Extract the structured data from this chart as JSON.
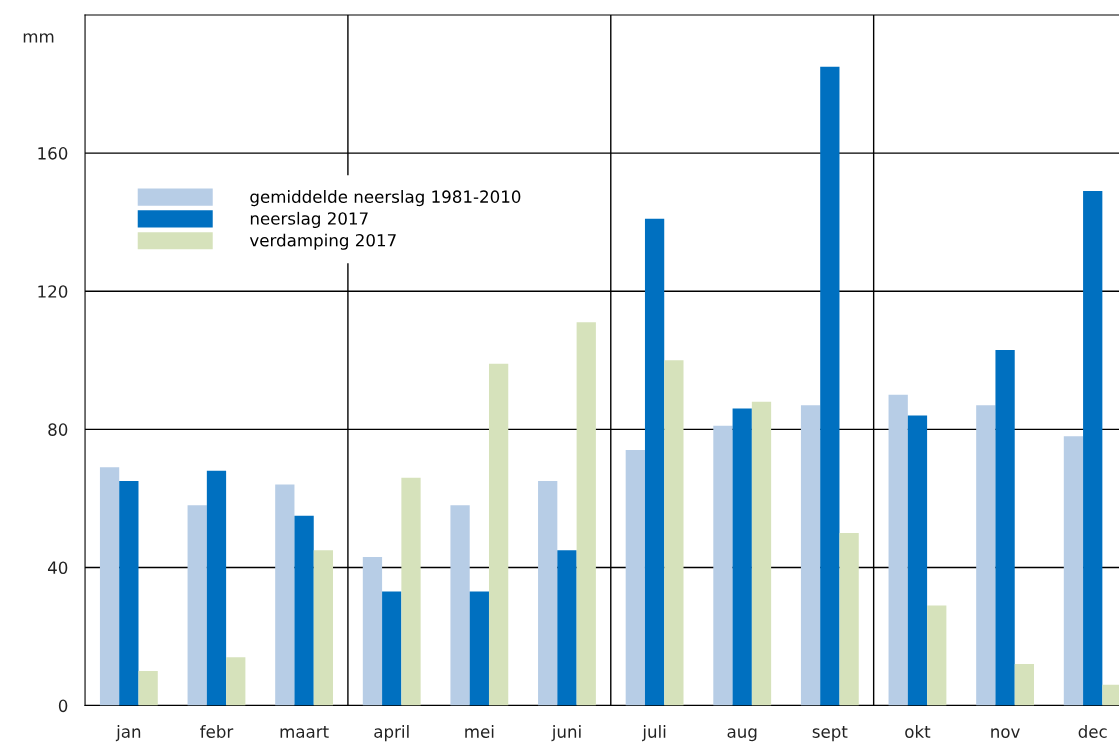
{
  "chart_data": {
    "type": "bar",
    "categories": [
      "jan",
      "febr",
      "maart",
      "april",
      "mei",
      "juni",
      "juli",
      "aug",
      "sept",
      "okt",
      "nov",
      "dec"
    ],
    "series": [
      {
        "name": "gemiddelde neerslag 1981-2010",
        "color": "#b7cde6",
        "values": [
          69,
          58,
          64,
          43,
          58,
          65,
          74,
          81,
          87,
          90,
          87,
          78
        ]
      },
      {
        "name": "neerslag 2017",
        "color": "#0070c0",
        "values": [
          65,
          68,
          55,
          33,
          33,
          45,
          141,
          86,
          185,
          84,
          103,
          149
        ]
      },
      {
        "name": "verdamping 2017",
        "color": "#d6e2bb",
        "values": [
          10,
          14,
          45,
          66,
          99,
          111,
          100,
          88,
          50,
          29,
          12,
          6
        ]
      }
    ],
    "ylabel": "mm",
    "ylim": [
      0,
      200
    ],
    "yticks": [
      0,
      40,
      80,
      120,
      160
    ],
    "grid": "y",
    "legend": "top left"
  }
}
